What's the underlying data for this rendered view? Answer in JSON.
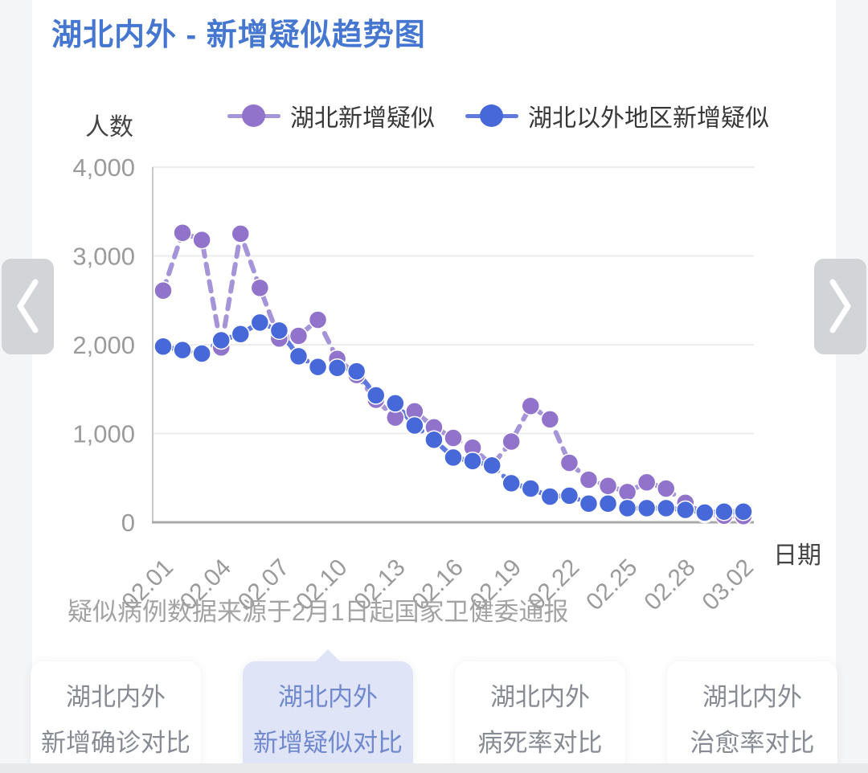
{
  "header": {
    "title": "湖北内外 - 新增疑似趋势图"
  },
  "footnote": "疑似病例数据来源于2月1日起国家卫健委通报",
  "chart_data": {
    "type": "line",
    "title": "湖北内外 - 新增疑似趋势图",
    "ylabel": "人数",
    "xlabel": "日期",
    "ylim": [
      0,
      4000
    ],
    "grid": true,
    "legend_position": "top",
    "y_tick_values": [
      0,
      1000,
      2000,
      3000,
      4000
    ],
    "y_tick_labels": [
      "0",
      "1,000",
      "2,000",
      "3,000",
      "4,000"
    ],
    "x_tick_every": 3,
    "categories": [
      "02.01",
      "02.02",
      "02.03",
      "02.04",
      "02.05",
      "02.06",
      "02.07",
      "02.08",
      "02.09",
      "02.10",
      "02.11",
      "02.12",
      "02.13",
      "02.14",
      "02.15",
      "02.16",
      "02.17",
      "02.18",
      "02.19",
      "02.20",
      "02.21",
      "02.22",
      "02.23",
      "02.24",
      "02.25",
      "02.26",
      "02.27",
      "02.28",
      "02.29",
      "03.01",
      "03.02"
    ],
    "series": [
      {
        "name": "湖北新增疑似",
        "color": "#9173cb",
        "line_color": "#a694d8",
        "values": [
          2610,
          3260,
          3180,
          1970,
          3250,
          2640,
          2070,
          2100,
          2280,
          1840,
          1660,
          1380,
          1180,
          1250,
          1070,
          950,
          840,
          640,
          910,
          1310,
          1160,
          670,
          480,
          410,
          340,
          450,
          380,
          220,
          95,
          75,
          70
        ]
      },
      {
        "name": "湖北以外地区新增疑似",
        "color": "#4768d9",
        "line_color": "#6079df",
        "values": [
          1980,
          1940,
          1900,
          2050,
          2120,
          2250,
          2160,
          1870,
          1750,
          1740,
          1700,
          1430,
          1340,
          1090,
          930,
          730,
          690,
          640,
          440,
          380,
          290,
          300,
          210,
          210,
          160,
          160,
          160,
          140,
          110,
          120,
          120
        ]
      }
    ]
  },
  "tabs": [
    {
      "line1": "湖北内外",
      "line2": "新增确诊对比",
      "selected": false
    },
    {
      "line1": "湖北内外",
      "line2": "新增疑似对比",
      "selected": true
    },
    {
      "line1": "湖北内外",
      "line2": "病死率对比",
      "selected": false
    },
    {
      "line1": "湖北内外",
      "line2": "治愈率对比",
      "selected": false
    }
  ]
}
